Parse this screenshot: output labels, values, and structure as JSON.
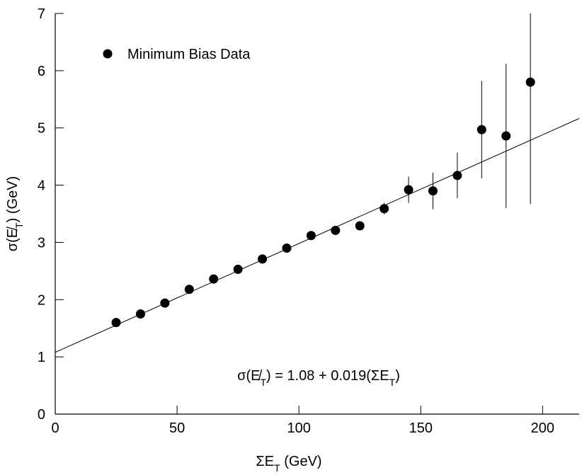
{
  "chart_data": {
    "type": "scatter",
    "x_label": [
      "ΣE",
      "T",
      " (GeV)"
    ],
    "y_label": [
      "σ(E̸",
      "T",
      ") (GeV)"
    ],
    "annotation": [
      "σ(E̸",
      "T",
      ") = 1.08 + 0.019(ΣE",
      "T",
      ")"
    ],
    "fit": {
      "intercept": 1.08,
      "slope": 0.019
    },
    "x": [
      25,
      35,
      45,
      55,
      65,
      75,
      85,
      95,
      105,
      115,
      125,
      135,
      145,
      155,
      165,
      175,
      185,
      195
    ],
    "series": [
      {
        "name": "Minimum Bias Data",
        "color": "#000000",
        "values": [
          1.6,
          1.75,
          1.94,
          2.18,
          2.36,
          2.53,
          2.71,
          2.9,
          3.12,
          3.21,
          3.29,
          3.59,
          3.92,
          3.9,
          4.17,
          4.97,
          4.86,
          5.8
        ],
        "errors": [
          0.02,
          0.02,
          0.02,
          0.03,
          0.03,
          0.03,
          0.03,
          0.04,
          0.04,
          0.05,
          0.06,
          0.1,
          0.23,
          0.32,
          0.4,
          0.85,
          1.26,
          2.13
        ]
      }
    ],
    "xlim": [
      0,
      215
    ],
    "ylim": [
      0,
      7
    ],
    "xticks": [
      0,
      50,
      100,
      150,
      200
    ],
    "yticks": [
      0,
      1,
      2,
      3,
      4,
      5,
      6,
      7
    ],
    "legend": "upper left"
  }
}
